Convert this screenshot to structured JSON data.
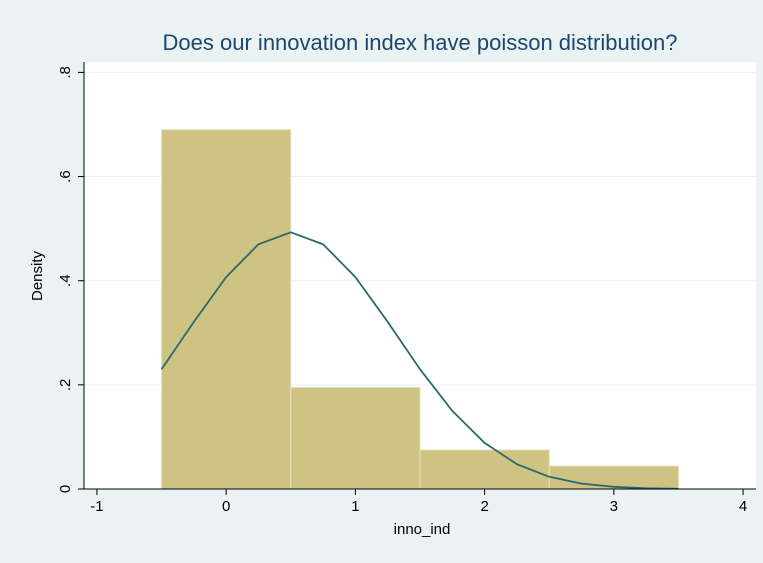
{
  "chart_data": {
    "type": "histogram",
    "title": "Does our innovation index have poisson distribution?",
    "xlabel": "inno_ind",
    "ylabel": "Density",
    "bins": [
      -0.5,
      0.5,
      1.5,
      2.5,
      3.5
    ],
    "values": [
      0.69,
      0.195,
      0.075,
      0.044
    ],
    "color": "#cfc384",
    "xlim": [
      -1.1,
      4.1
    ],
    "xticks": [
      -1,
      0,
      1,
      2,
      3,
      4
    ],
    "ylim": [
      0,
      0.82
    ],
    "yticks": [
      0,
      {
        "value": 0.2,
        "label": ".2"
      },
      {
        "value": 0.4,
        "label": ".4"
      },
      {
        "value": 0.6,
        "label": ".6"
      },
      {
        "value": 0.8,
        "label": ".8"
      }
    ],
    "grid": true,
    "overlay": {
      "type": "line",
      "color": "#2b6a6c",
      "x": [
        -0.5,
        -0.25,
        0,
        0.25,
        0.5,
        0.75,
        1,
        1.25,
        1.5,
        1.75,
        2,
        2.25,
        2.5,
        2.75,
        3,
        3.25,
        3.5
      ],
      "values": [
        0.23,
        0.321,
        0.407,
        0.47,
        0.493,
        0.47,
        0.407,
        0.321,
        0.23,
        0.15,
        0.0886,
        0.0477,
        0.0234,
        0.0104,
        0.0042,
        0.0015,
        0.0005
      ]
    }
  }
}
